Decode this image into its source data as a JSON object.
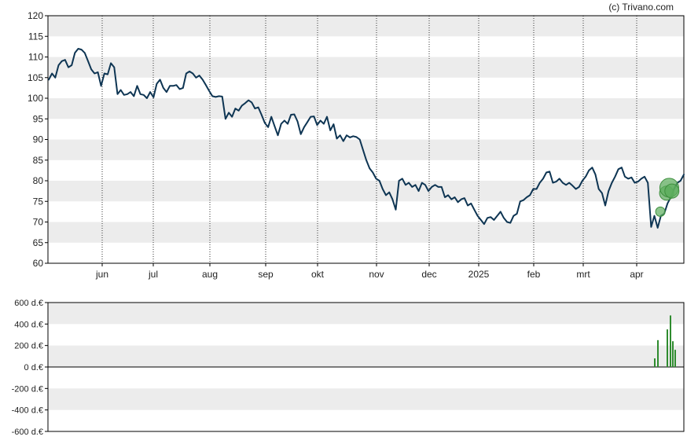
{
  "credit": "(c) Trivano.com",
  "colors": {
    "price_line": "#0e3553",
    "band": "#ececec",
    "axis": "#000000",
    "volume_bar": "#2e8b2e",
    "bubble_fill": "#5cae5c",
    "bubble_stroke": "#3e8f3e"
  },
  "chart_data": [
    {
      "type": "line",
      "title": "",
      "ylim": [
        60,
        120
      ],
      "y_ticks": [
        "60",
        "65",
        "70",
        "75",
        "80",
        "85",
        "90",
        "95",
        "100",
        "105",
        "110",
        "115",
        "120"
      ],
      "x_ticks": [
        "jun",
        "jul",
        "aug",
        "sep",
        "okt",
        "nov",
        "dec",
        "2025",
        "feb",
        "mrt",
        "apr"
      ],
      "grid": "dotted vertical lines at month ticks, alternating horizontal bands",
      "series": [
        {
          "values": [
            104.5,
            106,
            105,
            108,
            109,
            109.3,
            107.5,
            108,
            111,
            112,
            111.8,
            111,
            109,
            107,
            106,
            106.3,
            103,
            106,
            105.8,
            108.5,
            107.5,
            101,
            102,
            100.8,
            101,
            101.5,
            100.5,
            103,
            101,
            100.8,
            100,
            101.5,
            100.2,
            103.5,
            104.5,
            102.5,
            101.5,
            103,
            103,
            103.2,
            102.2,
            102.5,
            106,
            106.5,
            106,
            105,
            105.5,
            104.5,
            103.2,
            101.8,
            100.5,
            100.3,
            100.5,
            100.4,
            95,
            96.5,
            95.5,
            97.5,
            97,
            98.2,
            98.8,
            99.5,
            99,
            97.5,
            97.8,
            96,
            94,
            93,
            95.5,
            93.2,
            91,
            93.8,
            94.6,
            93.8,
            96,
            96.1,
            94.4,
            91.3,
            93,
            94.2,
            95.5,
            95.6,
            93.5,
            94.6,
            93.8,
            95.5,
            92.2,
            93.7,
            90.2,
            91,
            89.6,
            91,
            90.5,
            90.8,
            90.6,
            90,
            87.5,
            85,
            83,
            82,
            80.5,
            80,
            78,
            76.5,
            77.2,
            75.5,
            73,
            80,
            80.5,
            79,
            79.5,
            78.5,
            79,
            77.5,
            79.5,
            79,
            77.5,
            78.5,
            79,
            78.5,
            78.5,
            76,
            76.5,
            75.5,
            76,
            74.8,
            75.5,
            75.8,
            74,
            74.5,
            73,
            71.5,
            70.5,
            69.5,
            71,
            71.2,
            70.5,
            71.5,
            72.5,
            71,
            70,
            69.8,
            71.5,
            72,
            75,
            75.3,
            76,
            76.5,
            78,
            78,
            79.5,
            80.5,
            82,
            82.2,
            79.5,
            79.8,
            80.5,
            79.5,
            79,
            79.5,
            78.8,
            78,
            78.5,
            80,
            81,
            82.5,
            83.2,
            81.5,
            78,
            77,
            74,
            77.5,
            79.5,
            81,
            82.8,
            83.2,
            81,
            80.5,
            80.8,
            79.5,
            79.8,
            80.5,
            81,
            79.5,
            68.8,
            71.5,
            68.6,
            71.5,
            72,
            74.5,
            76,
            78,
            79.5,
            80,
            81.5
          ]
        }
      ],
      "bubbles": [
        {
          "day": 2.4,
          "value": 72.5,
          "size": "small"
        },
        {
          "day": 4.3,
          "value": 77.0,
          "size": "medium"
        },
        {
          "day": 5.1,
          "value": 78.3,
          "size": "large"
        },
        {
          "day": 5.9,
          "value": 77.5,
          "size": "medium"
        }
      ]
    },
    {
      "type": "bar",
      "title": "",
      "ylim": [
        -600,
        600
      ],
      "y_ticks": [
        "600 d.€",
        "400 d.€",
        "200 d.€",
        "0 d.€",
        "-200 d.€",
        "-400 d.€",
        "-600 d.€"
      ],
      "series": [
        {
          "values": [
            80,
            250,
            350,
            480,
            240,
            160
          ]
        }
      ]
    }
  ]
}
